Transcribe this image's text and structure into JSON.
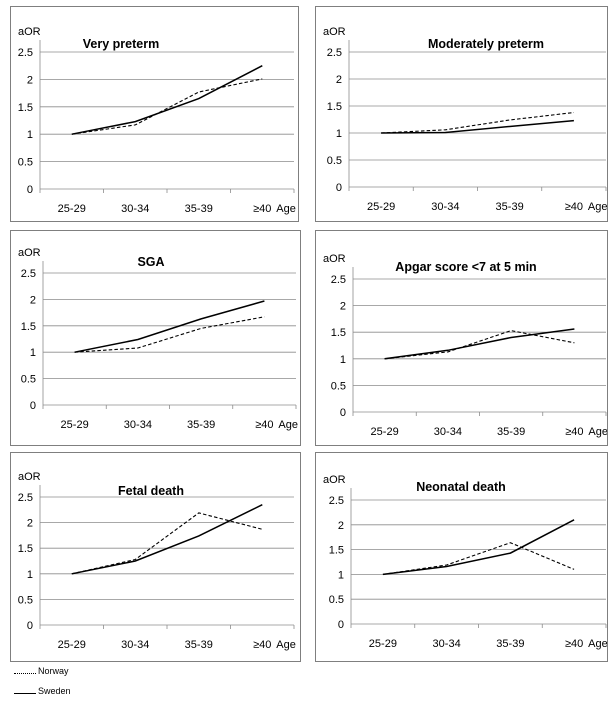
{
  "chart_data": [
    {
      "type": "line",
      "title": "Very preterm",
      "ylabel": "aOR",
      "xlabel": "Age",
      "categories": [
        "25-29",
        "30-34",
        "35-39",
        "≥40"
      ],
      "ylim": [
        0,
        2.5
      ],
      "yticks": [
        "0",
        "0.5",
        "1",
        "1.5",
        "2",
        "2.5"
      ],
      "series": [
        {
          "name": "Norway",
          "values": [
            1.0,
            1.17,
            1.77,
            2.01
          ]
        },
        {
          "name": "Sweden",
          "values": [
            1.0,
            1.23,
            1.65,
            2.25
          ]
        }
      ]
    },
    {
      "type": "line",
      "title": "Moderately preterm",
      "ylabel": "aOR",
      "xlabel": "Age",
      "categories": [
        "25-29",
        "30-34",
        "35-39",
        "≥40"
      ],
      "ylim": [
        0,
        2.5
      ],
      "yticks": [
        "0",
        "0.5",
        "1",
        "1.5",
        "2",
        "2.5"
      ],
      "series": [
        {
          "name": "Norway",
          "values": [
            1.0,
            1.06,
            1.24,
            1.38
          ]
        },
        {
          "name": "Sweden",
          "values": [
            1.0,
            1.01,
            1.12,
            1.23
          ]
        }
      ]
    },
    {
      "type": "line",
      "title": "SGA",
      "ylabel": "aOR",
      "xlabel": "Age",
      "categories": [
        "25-29",
        "30-34",
        "35-39",
        "≥40"
      ],
      "ylim": [
        0,
        2.5
      ],
      "yticks": [
        "0",
        "0.5",
        "1",
        "1.5",
        "2",
        "2.5"
      ],
      "series": [
        {
          "name": "Norway",
          "values": [
            1.0,
            1.08,
            1.45,
            1.67
          ]
        },
        {
          "name": "Sweden",
          "values": [
            1.0,
            1.24,
            1.63,
            1.97
          ]
        }
      ]
    },
    {
      "type": "line",
      "title": "Apgar score <7 at 5 min",
      "ylabel": "aOR",
      "xlabel": "Age",
      "categories": [
        "25-29",
        "30-34",
        "35-39",
        "≥40"
      ],
      "ylim": [
        0,
        2.5
      ],
      "yticks": [
        "0",
        "0.5",
        "1",
        "1.5",
        "2",
        "2.5"
      ],
      "series": [
        {
          "name": "Norway",
          "values": [
            1.0,
            1.13,
            1.53,
            1.3
          ]
        },
        {
          "name": "Sweden",
          "values": [
            1.0,
            1.16,
            1.4,
            1.56
          ]
        }
      ]
    },
    {
      "type": "line",
      "title": "Fetal death",
      "ylabel": "aOR",
      "xlabel": "Age",
      "categories": [
        "25-29",
        "30-34",
        "35-39",
        "≥40"
      ],
      "ylim": [
        0,
        2.5
      ],
      "yticks": [
        "0",
        "0.5",
        "1",
        "1.5",
        "2",
        "2.5"
      ],
      "series": [
        {
          "name": "Norway",
          "values": [
            1.0,
            1.28,
            2.19,
            1.87
          ]
        },
        {
          "name": "Sweden",
          "values": [
            1.0,
            1.25,
            1.74,
            2.35
          ]
        }
      ]
    },
    {
      "type": "line",
      "title": "Neonatal death",
      "ylabel": "aOR",
      "xlabel": "Age",
      "categories": [
        "25-29",
        "30-34",
        "35-39",
        "≥40"
      ],
      "ylim": [
        0,
        2.5
      ],
      "yticks": [
        "0",
        "0.5",
        "1",
        "1.5",
        "2",
        "2.5"
      ],
      "series": [
        {
          "name": "Norway",
          "values": [
            1.0,
            1.19,
            1.64,
            1.1
          ]
        },
        {
          "name": "Sweden",
          "values": [
            1.0,
            1.16,
            1.43,
            2.1
          ]
        }
      ]
    }
  ],
  "legend": {
    "items": [
      {
        "label": "Norway",
        "style": "dashed"
      },
      {
        "label": "Sweden",
        "style": "solid"
      }
    ]
  },
  "colors": {
    "line": "#000000",
    "grid": "#8c8c8c",
    "border": "#7f7f7f"
  }
}
